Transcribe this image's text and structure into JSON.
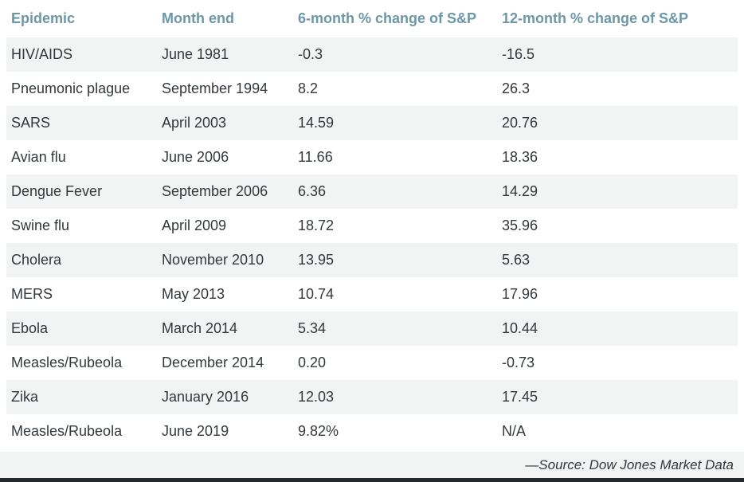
{
  "colors": {
    "header_text": "#6b97a6",
    "body_text": "#33383c",
    "stripe_background": "#f2f3f3",
    "bottom_bar": "#23282c",
    "page_background": "#ffffff"
  },
  "chart_data": {
    "type": "table",
    "columns": [
      "Epidemic",
      "Month end",
      "6-month % change of S&P",
      "12-month % change of S&P"
    ],
    "rows": [
      [
        "HIV/AIDS",
        "June 1981",
        "-0.3",
        "-16.5"
      ],
      [
        "Pneumonic plague",
        "September 1994",
        "8.2",
        "26.3"
      ],
      [
        "SARS",
        "April 2003",
        "14.59",
        "20.76"
      ],
      [
        "Avian flu",
        "June 2006",
        "11.66",
        "18.36"
      ],
      [
        "Dengue Fever",
        "September 2006",
        "6.36",
        "14.29"
      ],
      [
        "Swine flu",
        "April 2009",
        "18.72",
        "35.96"
      ],
      [
        "Cholera",
        "November 2010",
        "13.95",
        "5.63"
      ],
      [
        "MERS",
        "May 2013",
        "10.74",
        "17.96"
      ],
      [
        "Ebola",
        "March 2014",
        "5.34",
        "10.44"
      ],
      [
        "Measles/Rubeola",
        "December 2014",
        "0.20",
        "-0.73"
      ],
      [
        "Zika",
        "January 2016",
        "12.03",
        "17.45"
      ],
      [
        "Measles/Rubeola",
        "June 2019",
        "9.82%",
        "N/A"
      ]
    ],
    "source": "—Source: Dow Jones Market Data",
    "layout": {
      "stripe_pattern": "odd rows shaded starting with first data row",
      "source_alignment": "right"
    }
  }
}
